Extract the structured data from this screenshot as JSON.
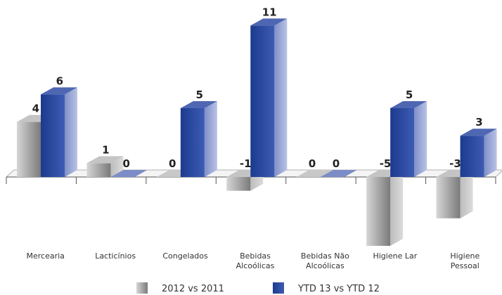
{
  "chart_data": {
    "type": "bar",
    "categories": [
      [
        "Mercearia"
      ],
      [
        "Lacticínios"
      ],
      [
        "Congelados"
      ],
      [
        "Bebidas",
        "Alcoólicas"
      ],
      [
        "Bebidas Não",
        "Alcoólicas"
      ],
      [
        "Higiene Lar"
      ],
      [
        "Higiene",
        "Pessoal"
      ]
    ],
    "series": [
      {
        "name": "2012 vs 2011",
        "values": [
          4,
          1,
          0,
          -1,
          0,
          -5,
          -3
        ],
        "color": "#a8a8a8"
      },
      {
        "name": "YTD 13 vs YTD 12",
        "values": [
          6,
          0,
          5,
          11,
          0,
          5,
          3
        ],
        "color": "#2e4a9e"
      }
    ],
    "value_labels": [
      [
        "4",
        "1",
        "0",
        "-1",
        "0",
        "-5",
        "-3"
      ],
      [
        "6",
        "0",
        "5",
        "11",
        "0",
        "5",
        "3"
      ]
    ],
    "ylim": [
      -5,
      11
    ],
    "grid": false,
    "legend_position": "bottom",
    "style": "3d-bar"
  }
}
